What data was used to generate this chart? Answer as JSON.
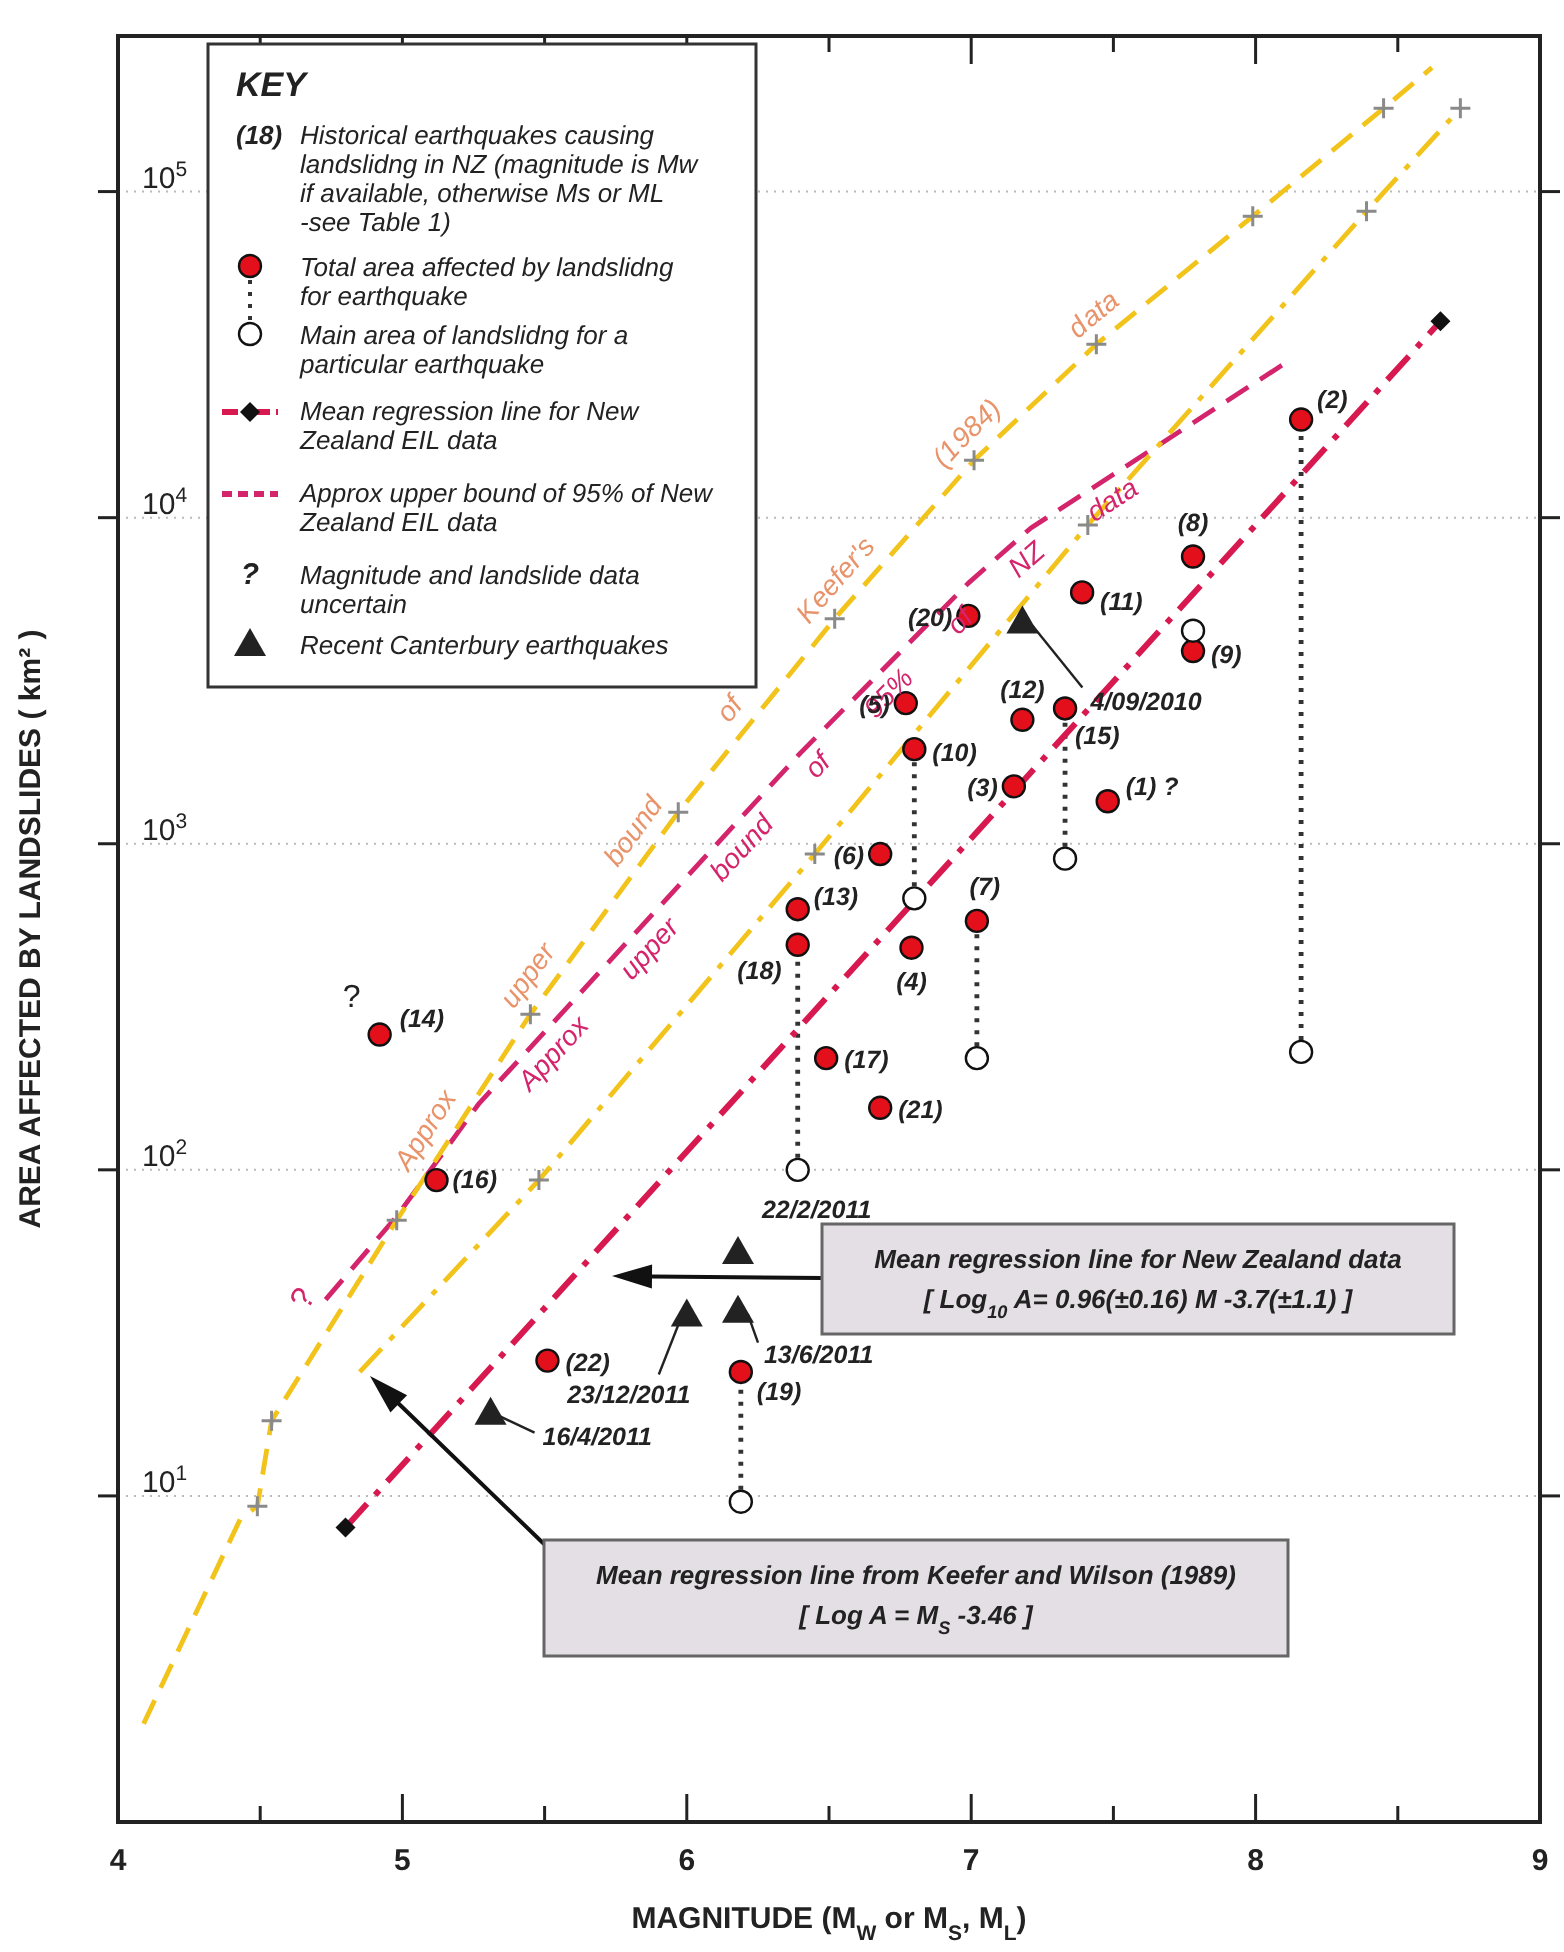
{
  "chart_data": {
    "type": "scatter",
    "xlabel": "MAGNITUDE (M$_{W}$ or M$_{S}$, M$_{L}$)",
    "ylabel": "AREA AFFECTED BY LANDSLIDES ( km² )",
    "legend_title": "KEY",
    "legend": "top left",
    "grid": "y",
    "log": "y",
    "xlim": [
      4,
      9
    ],
    "ylim": [
      1,
      300000
    ],
    "xticks": [
      4,
      {
        "value": 4.5,
        "label": null
      },
      5,
      {
        "value": 5.5,
        "label": null
      },
      6,
      {
        "value": 6.5,
        "label": null
      },
      7,
      {
        "value": 7.5,
        "label": null
      },
      8,
      {
        "value": 8.5,
        "label": null
      },
      9
    ],
    "yticks": [
      {
        "value": 10,
        "label": "10$^{1}$"
      },
      {
        "value": 100,
        "label": "10$^{2}$"
      },
      {
        "value": 1000,
        "label": "10$^{3}$"
      },
      {
        "value": 10000,
        "label": "10$^{4}$"
      },
      {
        "value": 100000,
        "label": "10$^{5}$"
      }
    ],
    "series": [
      {
        "name": "Total area affected  by landslidng for earthquake",
        "color": "#e3101b",
        "marker": "circle",
        "x": [
          8.16,
          7.78,
          7.78,
          7.39,
          6.99,
          6.77,
          7.18,
          7.33,
          6.8,
          7.15,
          7.48,
          6.68,
          6.39,
          6.39,
          6.79,
          7.02,
          6.49,
          6.68,
          4.92,
          5.12,
          5.51,
          6.19
        ],
        "values": [
          20000,
          7600,
          3900,
          5900,
          5000,
          2700,
          2400,
          2600,
          1950,
          1500,
          1350,
          930,
          630,
          490,
          480,
          580,
          220,
          155,
          260,
          93,
          26,
          24
        ]
      },
      {
        "name": "Main area of landslidng for a particular earthquake",
        "color": "#ffffff",
        "marker": "circle",
        "x": [
          8.16,
          7.78,
          7.33,
          6.8,
          6.39,
          7.02,
          6.19
        ],
        "values": [
          230,
          4500,
          900,
          680,
          100,
          220,
          9.6
        ]
      },
      {
        "type": "line",
        "color": "#333333",
        "line_style": "dotted",
        "x": [
          8.16,
          8.16,
          null,
          7.78,
          7.78,
          null,
          7.33,
          7.33,
          null,
          6.8,
          6.8,
          null,
          6.39,
          6.39,
          null,
          7.02,
          7.02,
          null,
          6.19,
          6.19
        ],
        "values": [
          230,
          20000,
          null,
          4500,
          3900,
          null,
          900,
          2600,
          null,
          680,
          1950,
          null,
          100,
          490,
          null,
          220,
          580,
          null,
          9.6,
          24
        ]
      },
      {
        "type": "line",
        "name": "Mean regression line for New Zealand EIL data",
        "color": "#d7194f",
        "line_style": "dashdot",
        "marker": "diamond",
        "x": [
          4.8,
          8.65
        ],
        "values": [
          8,
          40000
        ]
      },
      {
        "type": "line",
        "name": "Approx upper bound of 95% of New Zealand EIL data",
        "color": "#d4246c",
        "line_style": "dashed",
        "x": [
          4.73,
          4.98,
          5.27,
          6.4,
          6.99,
          7.21,
          8.11
        ],
        "values": [
          40,
          72,
          160,
          1900,
          6300,
          9300,
          30000
        ]
      },
      {
        "type": "line",
        "name": "Approx upper bound of Keefer's (1984) data",
        "color": "#f2c31b",
        "line_style": "dashed",
        "x": [
          4.09,
          4.43,
          4.49,
          4.54,
          4.98,
          5.45,
          5.97,
          6.52,
          7.01,
          7.44,
          7.99,
          8.45,
          8.62
        ],
        "values": [
          2,
          8.5,
          9.3,
          17,
          70,
          300,
          1250,
          4900,
          15000,
          34000,
          84000,
          180000,
          240000
        ]
      },
      {
        "type": "line",
        "color": "#f2c31b",
        "line_style": "dashdot",
        "x": [
          4.85,
          5.48,
          6.45,
          7.41,
          8.39,
          8.72
        ],
        "values": [
          24,
          93,
          930,
          9500,
          87000,
          180000
        ]
      },
      {
        "color": "#8a8a8a",
        "marker": "cross",
        "x": [
          4.49,
          4.54,
          4.98,
          5.45,
          5.97,
          6.52,
          7.01,
          7.44,
          7.99,
          8.45,
          5.48,
          6.45,
          7.41,
          8.39,
          8.72
        ],
        "values": [
          9.3,
          17,
          70,
          300,
          1250,
          4900,
          15000,
          34000,
          84000,
          180000,
          93,
          930,
          9500,
          87000,
          180000
        ]
      },
      {
        "name": "Recent Canterbury earthquakes",
        "color": "#222222",
        "marker": "triangle",
        "x": [
          7.18,
          6.18,
          6.18,
          6.0,
          5.31
        ],
        "values": [
          4800,
          56,
          37,
          36,
          18
        ]
      }
    ],
    "annotations": [
      "(18)",
      "Historical earthquakes causing landslidng in NZ (magnitude is Mw if available, otherwise Ms or ML -see Table 1)",
      "?",
      "Magnitude and landslide data uncertain",
      {
        "text": "Approx upper bound of 95% of NZ data",
        "x": 6.4,
        "y": 1900
      },
      {
        "text": "?",
        "x": 4.92,
        "y": 260
      },
      {
        "text": "?",
        "x": 4.73,
        "y": 40
      },
      "Mean regression line for New Zealand data\n[   Log$_{10}$ A= 0.96(±0.16) M -3.7(±1.1)   ]",
      "Mean regression line from Keefer and Wilson (1989)\n[   Log A = M$_{S}$ -3.46   ]",
      {
        "text": "(2)",
        "x": 8.16,
        "y": 20000
      },
      {
        "text": "(8)",
        "x": 7.78,
        "y": 7600
      },
      {
        "text": "(9)",
        "x": 7.78,
        "y": 3900
      },
      {
        "text": "(11)",
        "x": 7.39,
        "y": 5900
      },
      {
        "text": "(20)",
        "x": 6.99,
        "y": 5000
      },
      {
        "text": "(5)",
        "x": 6.77,
        "y": 2700
      },
      {
        "text": "(12)",
        "x": 7.18,
        "y": 2400
      },
      {
        "text": "(15)",
        "x": 7.33,
        "y": 2600
      },
      {
        "text": "(10)",
        "x": 6.8,
        "y": 1950
      },
      {
        "text": "(3)",
        "x": 7.15,
        "y": 1500
      },
      {
        "text": "(1) ?",
        "x": 7.48,
        "y": 1350
      },
      {
        "text": "(6)",
        "x": 6.68,
        "y": 930
      },
      {
        "text": "(13)",
        "x": 6.39,
        "y": 630
      },
      {
        "text": "(18)",
        "x": 6.39,
        "y": 490
      },
      {
        "text": "(4)",
        "x": 6.79,
        "y": 480
      },
      {
        "text": "(7)",
        "x": 7.02,
        "y": 580
      },
      {
        "text": "(17)",
        "x": 6.49,
        "y": 220
      },
      {
        "text": "(21)",
        "x": 6.68,
        "y": 155
      },
      {
        "text": "(14)",
        "x": 4.92,
        "y": 260
      },
      {
        "text": "(16)",
        "x": 5.12,
        "y": 93
      },
      {
        "text": "(22)",
        "x": 5.51,
        "y": 26
      },
      {
        "text": "(19)",
        "x": 6.19,
        "y": 24
      },
      {
        "text": "4/09/2010",
        "x": 7.18,
        "y": 4800
      },
      {
        "text": "22/2/2011",
        "x": 6.18,
        "y": 56
      },
      {
        "text": "13/6/2011",
        "x": 6.18,
        "y": 37
      },
      {
        "text": "23/12/2011",
        "x": 6.0,
        "y": 36
      },
      {
        "text": "16/4/2011",
        "x": 5.31,
        "y": 18
      }
    ]
  }
}
